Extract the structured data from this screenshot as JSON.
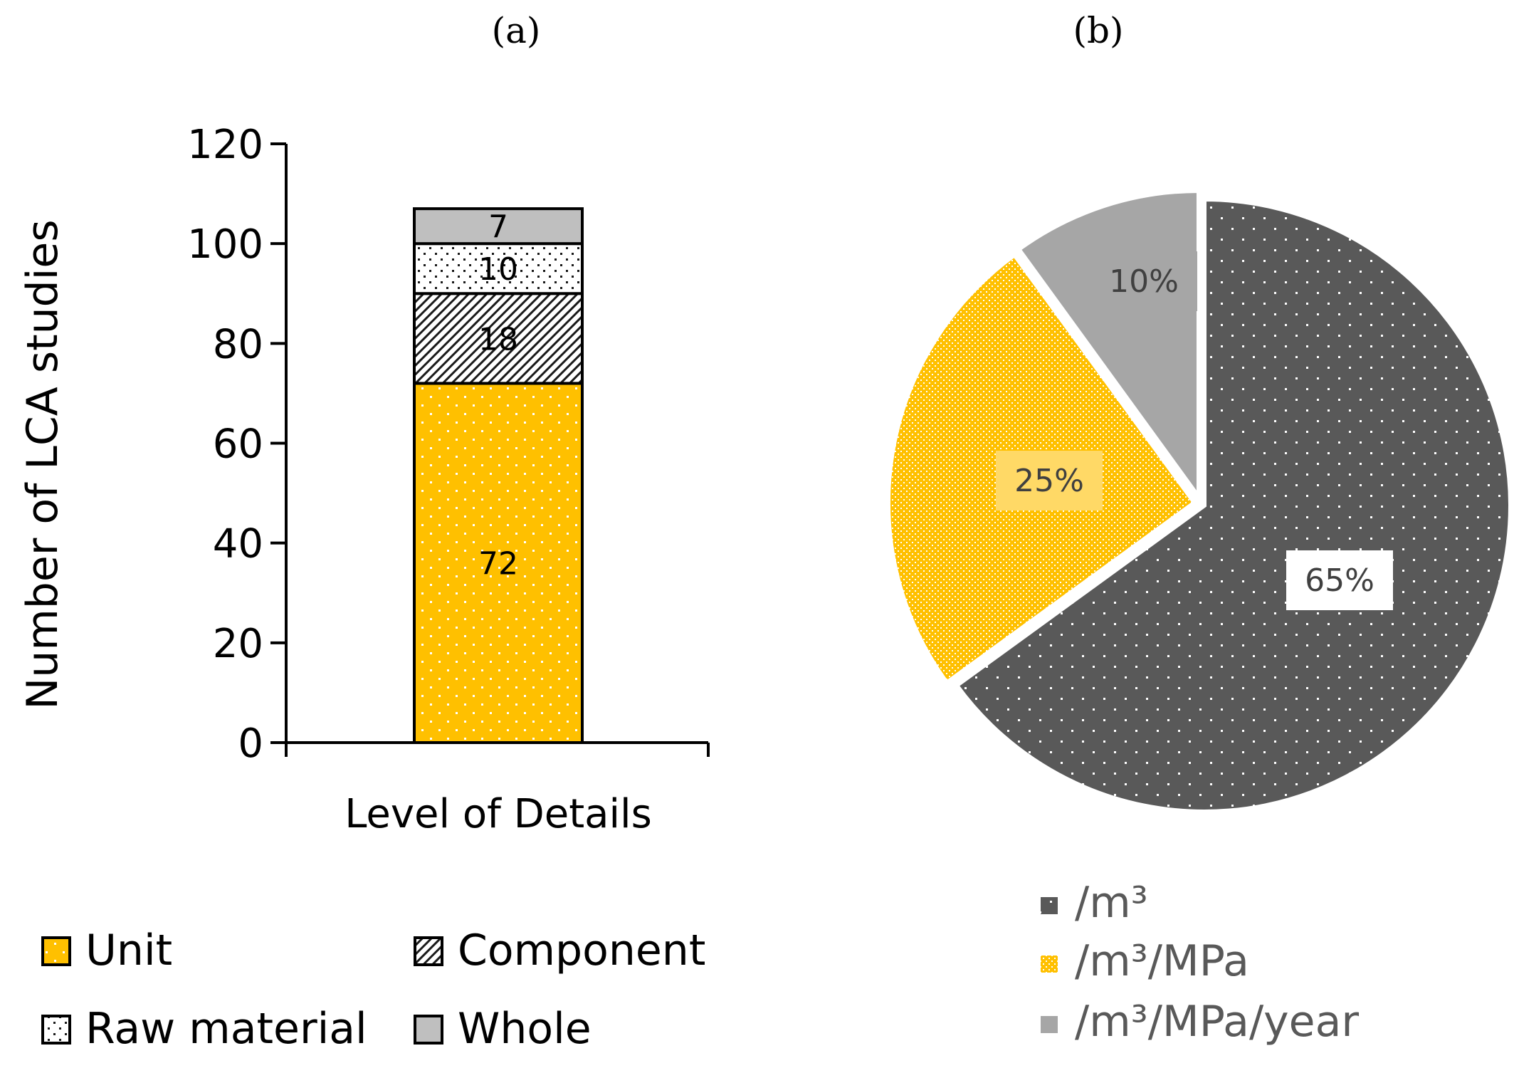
{
  "figure": {
    "label_a": "(a)",
    "label_b": "(b)"
  },
  "chart_data": [
    {
      "type": "bar",
      "stacked": true,
      "categories": [
        "Level of Details"
      ],
      "xlabel": "Level of Details",
      "ylabel": "Number of LCA studies",
      "ylim": [
        0,
        120
      ],
      "yticks": [
        0,
        20,
        40,
        60,
        80,
        100,
        120
      ],
      "series": [
        {
          "name": "Unit",
          "values": [
            72
          ],
          "color": "#ffc000",
          "pattern": "dots"
        },
        {
          "name": "Component",
          "values": [
            18
          ],
          "color": "#ffffff",
          "pattern": "diagonal"
        },
        {
          "name": "Raw material",
          "values": [
            10
          ],
          "color": "#ffffff",
          "pattern": "sparse-dots"
        },
        {
          "name": "Whole",
          "values": [
            7
          ],
          "color": "#bfbfbf",
          "pattern": "solid"
        }
      ],
      "legend_position": "bottom"
    },
    {
      "type": "pie",
      "slices": [
        {
          "name": "/m³",
          "value": 65,
          "label": "65%",
          "color": "#595959",
          "pattern": "dots"
        },
        {
          "name": "/m³/MPa",
          "value": 25,
          "label": "25%",
          "color": "#ffc000",
          "pattern": "dense-dots"
        },
        {
          "name": "/m³/MPa/year",
          "value": 10,
          "label": "10%",
          "color": "#a6a6a6",
          "pattern": "solid"
        }
      ],
      "legend_position": "bottom"
    }
  ]
}
